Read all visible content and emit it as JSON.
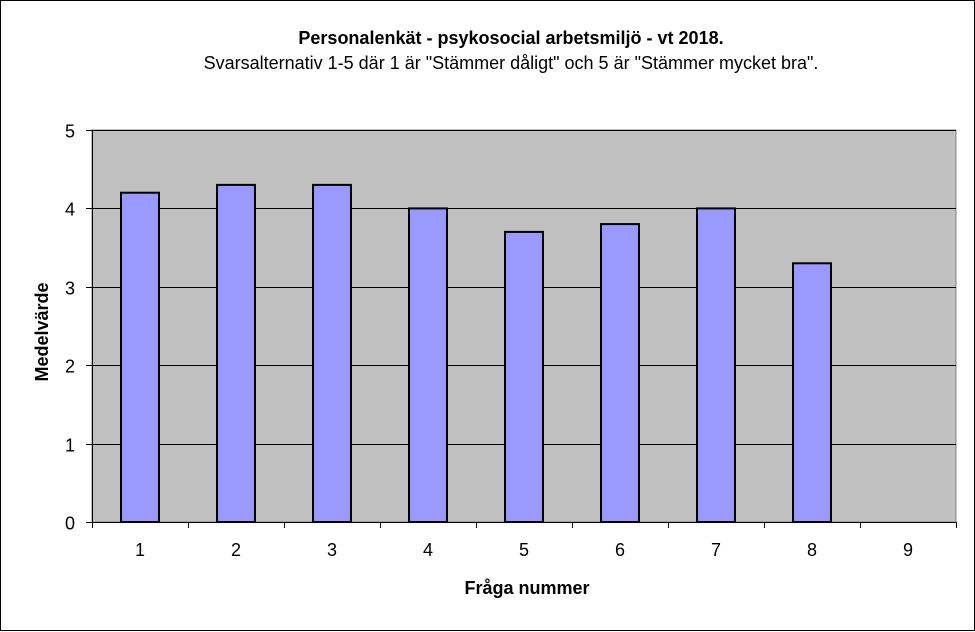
{
  "chart_data": {
    "type": "bar",
    "title": "Personalenkät - psykosocial arbetsmiljö - vt 2018.",
    "subtitle": "Svarsalternativ 1-5 där 1 är \"Stämmer dåligt\" och 5 är \"Stämmer mycket bra\".",
    "xlabel": "Fråga nummer",
    "ylabel": "Medelvärde",
    "categories": [
      "1",
      "2",
      "3",
      "4",
      "5",
      "6",
      "7",
      "8",
      "9"
    ],
    "values": [
      4.2,
      4.3,
      4.3,
      4.0,
      3.7,
      3.8,
      4.0,
      3.3,
      null
    ],
    "ylim": [
      0,
      5
    ],
    "yticks": [
      "0",
      "1",
      "2",
      "3",
      "4",
      "5"
    ],
    "grid": true,
    "legend": "none",
    "colors": {
      "bar_fill": "#9999ff",
      "plot_background": "#c0c0c0",
      "gridline": "#000000",
      "bar_stroke": "#000000"
    }
  }
}
